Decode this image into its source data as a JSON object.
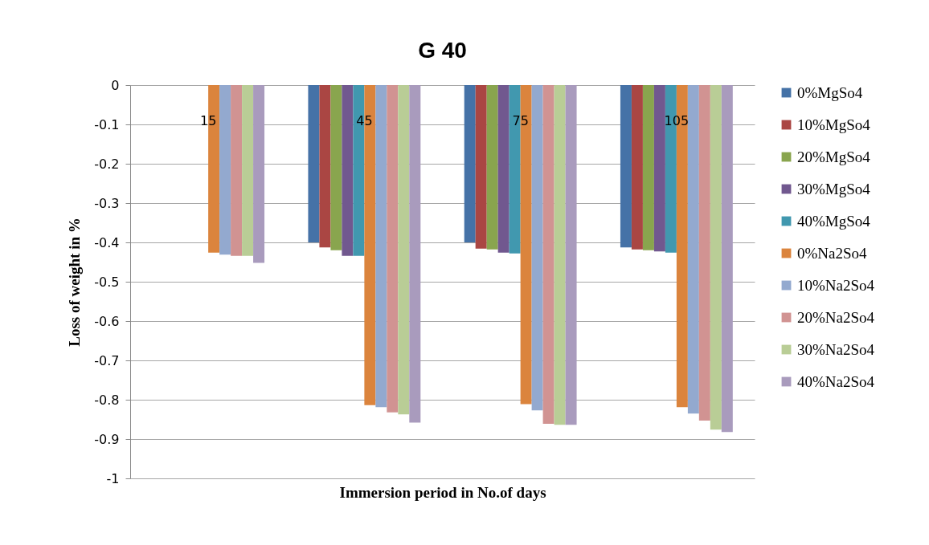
{
  "chart_data": {
    "type": "bar",
    "title": "G 40",
    "xlabel": "Immersion period in No.of days",
    "ylabel": "Loss of weight in %",
    "categories": [
      "15",
      "45",
      "75",
      "105"
    ],
    "series": [
      {
        "name": "0%MgSo4",
        "color": "#4572a7",
        "values": [
          null,
          -0.4,
          -0.4,
          -0.413
        ]
      },
      {
        "name": "10%MgSo4",
        "color": "#aa4643",
        "values": [
          null,
          -0.413,
          -0.416,
          -0.418
        ]
      },
      {
        "name": "20%MgSo4",
        "color": "#89a54e",
        "values": [
          null,
          -0.42,
          -0.418,
          -0.42
        ]
      },
      {
        "name": "30%MgSo4",
        "color": "#71588f",
        "values": [
          null,
          -0.434,
          -0.426,
          -0.423
        ]
      },
      {
        "name": "40%MgSo4",
        "color": "#4198af",
        "values": [
          null,
          -0.434,
          -0.428,
          -0.426
        ]
      },
      {
        "name": "0%Na2So4",
        "color": "#db843d",
        "values": [
          -0.426,
          -0.814,
          -0.811,
          -0.819
        ]
      },
      {
        "name": "10%Na2So4",
        "color": "#93a9cf",
        "values": [
          -0.431,
          -0.819,
          -0.827,
          -0.835
        ]
      },
      {
        "name": "20%Na2So4",
        "color": "#d19392",
        "values": [
          -0.434,
          -0.832,
          -0.861,
          -0.853
        ]
      },
      {
        "name": "30%Na2So4",
        "color": "#b9cd96",
        "values": [
          -0.434,
          -0.837,
          -0.864,
          -0.876
        ]
      },
      {
        "name": "40%Na2So4",
        "color": "#a99bbd",
        "values": [
          -0.452,
          -0.858,
          -0.864,
          -0.882
        ]
      }
    ],
    "ylim": [
      -1,
      0
    ],
    "yticks": [
      0,
      -0.1,
      -0.2,
      -0.3,
      -0.4,
      -0.5,
      -0.6,
      -0.7,
      -0.8,
      -0.9,
      -1
    ],
    "grid": "y",
    "legend": "right"
  }
}
